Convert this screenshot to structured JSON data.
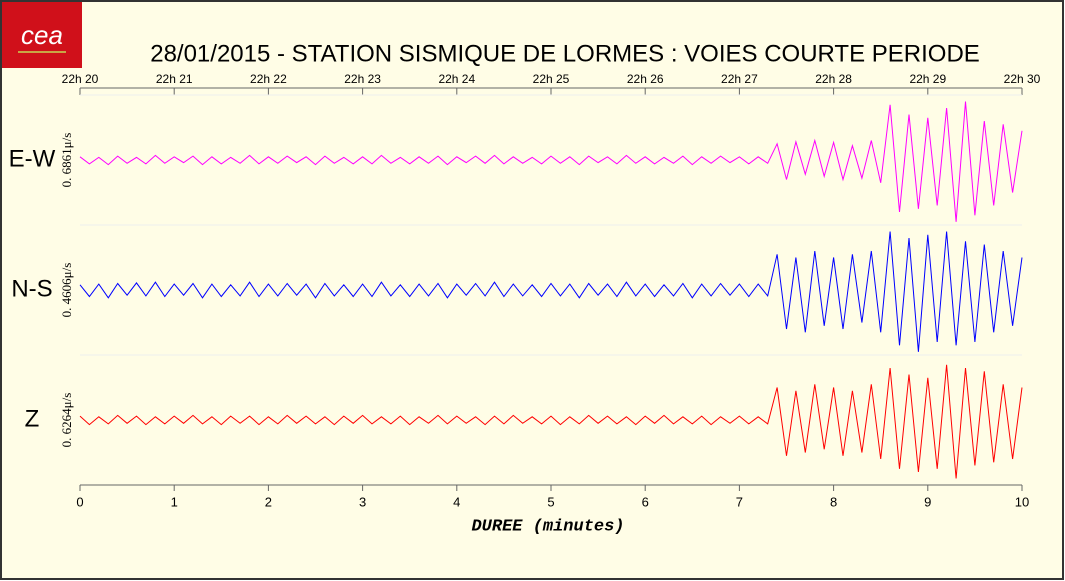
{
  "logo": "cea",
  "chart_data": {
    "type": "seismogram",
    "title": "28/01/2015  -  STATION SISMIQUE DE LORMES : VOIES COURTE PERIODE",
    "xlabel": "DUREE (minutes)",
    "xlim": [
      0,
      10
    ],
    "xticks": [
      0,
      1,
      2,
      3,
      4,
      5,
      6,
      7,
      8,
      9,
      10
    ],
    "x2ticks": [
      {
        "value": 0,
        "label": "22h 20"
      },
      {
        "value": 1,
        "label": "22h 21"
      },
      {
        "value": 2,
        "label": "22h 22"
      },
      {
        "value": 3,
        "label": "22h 23"
      },
      {
        "value": 4,
        "label": "22h 24"
      },
      {
        "value": 5,
        "label": "22h 25"
      },
      {
        "value": 6,
        "label": "22h 26"
      },
      {
        "value": 7,
        "label": "22h 27"
      },
      {
        "value": 8,
        "label": "22h 28"
      },
      {
        "value": 9,
        "label": "22h 29"
      },
      {
        "value": 10,
        "label": "22h 30"
      }
    ],
    "ylim": [
      -1,
      1
    ],
    "x": [
      0,
      0.1,
      0.2,
      0.3,
      0.4,
      0.5,
      0.6,
      0.7,
      0.8,
      0.9,
      1,
      1.1,
      1.2,
      1.3,
      1.4,
      1.5,
      1.6,
      1.7,
      1.8,
      1.9,
      2,
      2.1,
      2.2,
      2.3,
      2.4,
      2.5,
      2.6,
      2.7,
      2.8,
      2.9,
      3,
      3.1,
      3.2,
      3.3,
      3.4,
      3.5,
      3.6,
      3.7,
      3.8,
      3.9,
      4,
      4.1,
      4.2,
      4.3,
      4.4,
      4.5,
      4.6,
      4.7,
      4.8,
      4.9,
      5,
      5.1,
      5.2,
      5.3,
      5.4,
      5.5,
      5.6,
      5.7,
      5.8,
      5.9,
      6,
      6.1,
      6.2,
      6.3,
      6.4,
      6.5,
      6.6,
      6.7,
      6.8,
      6.9,
      7,
      7.1,
      7.2,
      7.3,
      7.4,
      7.5,
      7.6,
      7.7,
      7.8,
      7.9,
      8,
      8.1,
      8.2,
      8.3,
      8.4,
      8.5,
      8.6,
      8.7,
      8.8,
      8.9,
      9,
      9.1,
      9.2,
      9.3,
      9.4,
      9.5,
      9.6,
      9.7,
      9.8,
      9.9,
      10
    ],
    "series": [
      {
        "name": "E-W",
        "color": "#ff00ff",
        "scale_label": "0. 6861μ/s",
        "values": [
          0.05,
          -0.06,
          0.04,
          -0.07,
          0.06,
          -0.05,
          0.04,
          -0.06,
          0.07,
          -0.05,
          0.05,
          -0.04,
          0.06,
          -0.07,
          0.05,
          -0.06,
          0.04,
          -0.05,
          0.07,
          -0.06,
          0.05,
          -0.05,
          0.06,
          -0.04,
          0.05,
          -0.07,
          0.06,
          -0.05,
          0.04,
          -0.06,
          0.05,
          -0.06,
          0.07,
          -0.05,
          0.04,
          -0.06,
          0.05,
          -0.05,
          0.06,
          -0.07,
          0.05,
          -0.04,
          0.06,
          -0.05,
          0.07,
          -0.06,
          0.05,
          -0.05,
          0.04,
          -0.06,
          0.06,
          -0.05,
          0.05,
          -0.07,
          0.06,
          -0.04,
          0.05,
          -0.06,
          0.07,
          -0.05,
          0.05,
          -0.06,
          0.04,
          -0.05,
          0.06,
          -0.07,
          0.05,
          -0.05,
          0.06,
          -0.04,
          0.05,
          -0.06,
          0.05,
          -0.05,
          0.25,
          -0.3,
          0.28,
          -0.22,
          0.3,
          -0.25,
          0.27,
          -0.3,
          0.22,
          -0.28,
          0.3,
          -0.35,
          0.85,
          -0.8,
          0.7,
          -0.75,
          0.65,
          -0.7,
          0.8,
          -0.95,
          0.9,
          -0.85,
          0.6,
          -0.7,
          0.55,
          -0.5,
          0.45
        ]
      },
      {
        "name": "N-S",
        "color": "#0000ff",
        "scale_label": "0. 4606μ/s",
        "values": [
          0.08,
          -0.1,
          0.09,
          -0.12,
          0.1,
          -0.08,
          0.11,
          -0.09,
          0.12,
          -0.1,
          0.09,
          -0.08,
          0.1,
          -0.12,
          0.09,
          -0.1,
          0.08,
          -0.09,
          0.12,
          -0.1,
          0.09,
          -0.09,
          0.1,
          -0.08,
          0.09,
          -0.12,
          0.1,
          -0.09,
          0.08,
          -0.1,
          0.09,
          -0.1,
          0.12,
          -0.09,
          0.08,
          -0.1,
          0.09,
          -0.09,
          0.1,
          -0.12,
          0.09,
          -0.08,
          0.1,
          -0.09,
          0.12,
          -0.1,
          0.09,
          -0.09,
          0.08,
          -0.1,
          0.1,
          -0.09,
          0.09,
          -0.12,
          0.1,
          -0.08,
          0.09,
          -0.1,
          0.12,
          -0.09,
          0.09,
          -0.1,
          0.08,
          -0.09,
          0.1,
          -0.12,
          0.09,
          -0.09,
          0.1,
          -0.08,
          0.09,
          -0.1,
          0.09,
          -0.09,
          0.55,
          -0.6,
          0.5,
          -0.65,
          0.6,
          -0.55,
          0.5,
          -0.6,
          0.55,
          -0.5,
          0.6,
          -0.65,
          0.9,
          -0.85,
          0.8,
          -0.95,
          0.85,
          -0.8,
          0.9,
          -0.85,
          0.75,
          -0.8,
          0.7,
          -0.65,
          0.6,
          -0.55,
          0.5
        ]
      },
      {
        "name": "Z",
        "color": "#ff0000",
        "scale_label": "0. 6264μ/s",
        "values": [
          0.06,
          -0.07,
          0.05,
          -0.06,
          0.07,
          -0.05,
          0.06,
          -0.07,
          0.05,
          -0.06,
          0.06,
          -0.05,
          0.07,
          -0.06,
          0.05,
          -0.07,
          0.06,
          -0.05,
          0.06,
          -0.07,
          0.05,
          -0.06,
          0.07,
          -0.05,
          0.06,
          -0.06,
          0.05,
          -0.07,
          0.06,
          -0.05,
          0.07,
          -0.06,
          0.05,
          -0.06,
          0.06,
          -0.07,
          0.05,
          -0.05,
          0.07,
          -0.06,
          0.06,
          -0.05,
          0.05,
          -0.07,
          0.06,
          -0.06,
          0.07,
          -0.05,
          0.05,
          -0.06,
          0.06,
          -0.07,
          0.05,
          -0.06,
          0.07,
          -0.05,
          0.06,
          -0.06,
          0.05,
          -0.07,
          0.06,
          -0.05,
          0.07,
          -0.06,
          0.05,
          -0.06,
          0.06,
          -0.07,
          0.05,
          -0.05,
          0.06,
          -0.06,
          0.05,
          -0.06,
          0.5,
          -0.55,
          0.45,
          -0.5,
          0.55,
          -0.45,
          0.5,
          -0.55,
          0.45,
          -0.5,
          0.55,
          -0.6,
          0.8,
          -0.75,
          0.7,
          -0.8,
          0.65,
          -0.75,
          0.85,
          -0.9,
          0.8,
          -0.7,
          0.75,
          -0.65,
          0.55,
          -0.6,
          0.5
        ]
      }
    ]
  }
}
